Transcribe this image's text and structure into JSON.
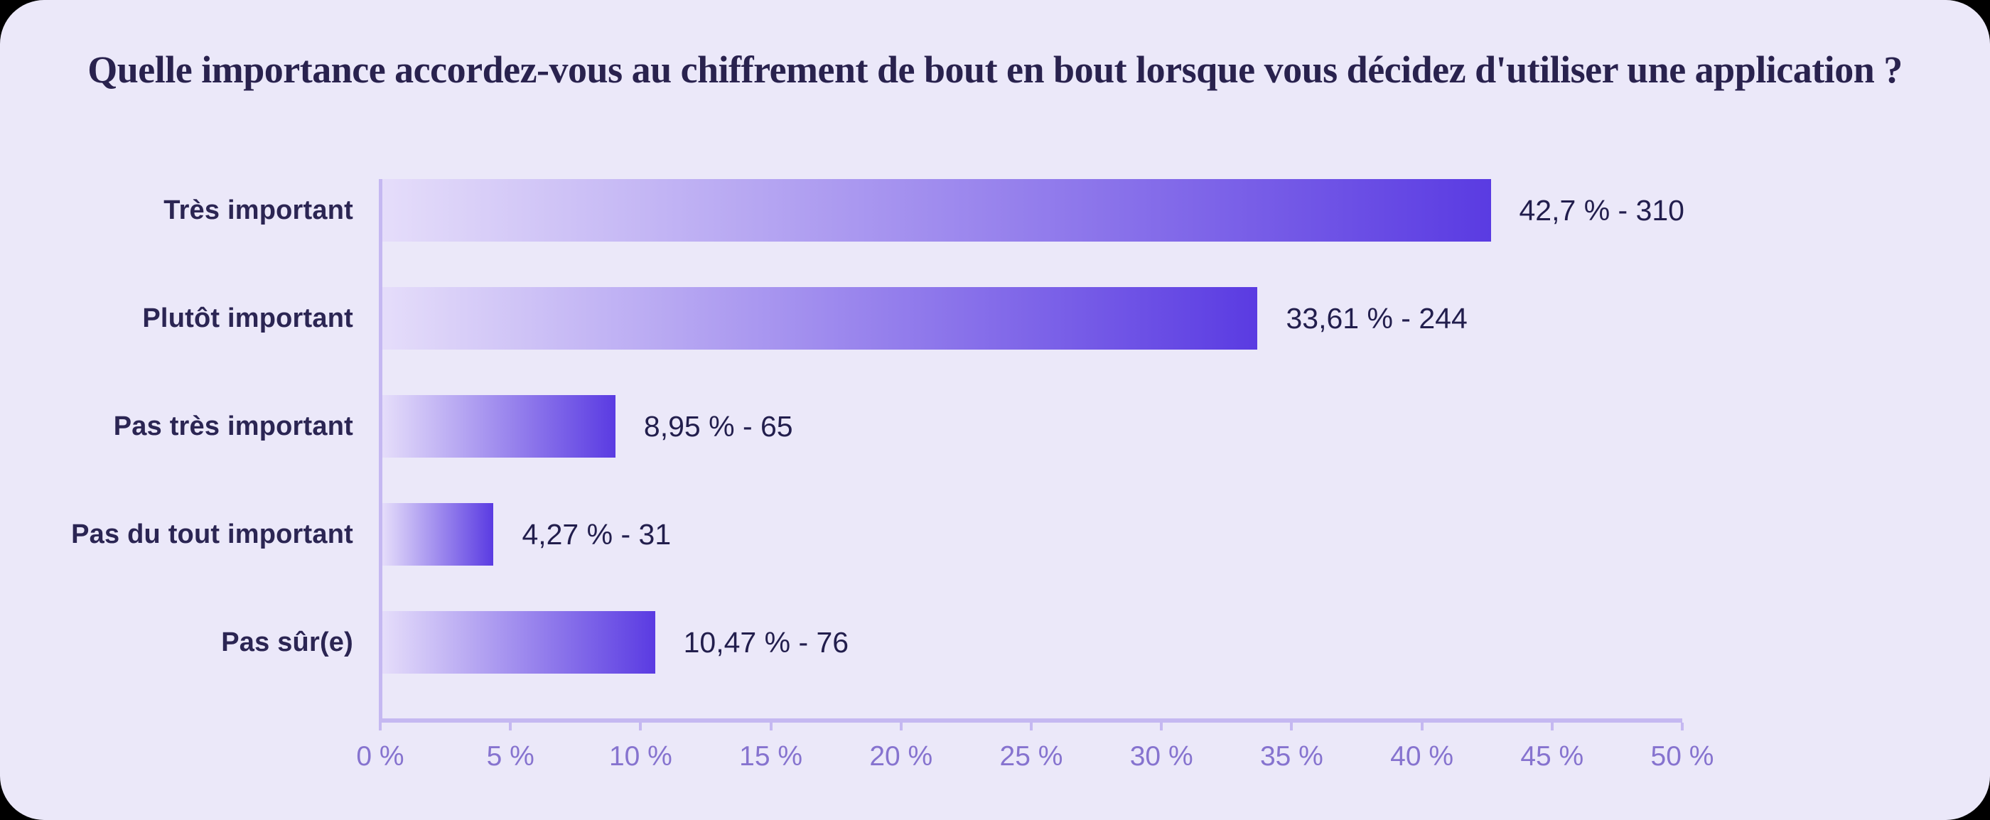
{
  "page": {
    "title": "Quelle importance accordez-vous au chiffrement de bout en bout lorsque vous décidez d'utiliser une application ?",
    "colors": {
      "outer_background": "#000000",
      "card_background": "#EBE8F9",
      "title": "#29224E"
    }
  },
  "chart_data": {
    "type": "bar",
    "orientation": "horizontal",
    "title": "Quelle importance accordez-vous au chiffrement de bout en bout lorsque vous décidez d'utiliser une application ?",
    "categories": [
      "Très important",
      "Plutôt important",
      "Pas très important",
      "Pas du tout important",
      "Pas sûr(e)"
    ],
    "values_percent": [
      42.7,
      33.61,
      8.95,
      4.27,
      10.47
    ],
    "counts": [
      310,
      244,
      65,
      31,
      76
    ],
    "value_labels": [
      "42,7 % - 310",
      "33,61 % - 244",
      "8,95 % - 65",
      "4,27 % - 31",
      "10,47 % - 76"
    ],
    "xlabel": "",
    "ylabel": "",
    "xlim": [
      0,
      50
    ],
    "x_tick_labels": [
      "0 %",
      "5 %",
      "10 %",
      "15 %",
      "20 %",
      "25 %",
      "30 %",
      "35 %",
      "40 %",
      "45 %",
      "50 %"
    ],
    "grid": false,
    "legend": "none",
    "colors": {
      "bar_gradient_start": "#E5DDFA",
      "bar_gradient_end": "#5A3BE2",
      "axis_line": "#C5B8F1",
      "tick_label": "#8673CF",
      "category_label": "#2B2553",
      "value_label": "#221E4D"
    }
  }
}
